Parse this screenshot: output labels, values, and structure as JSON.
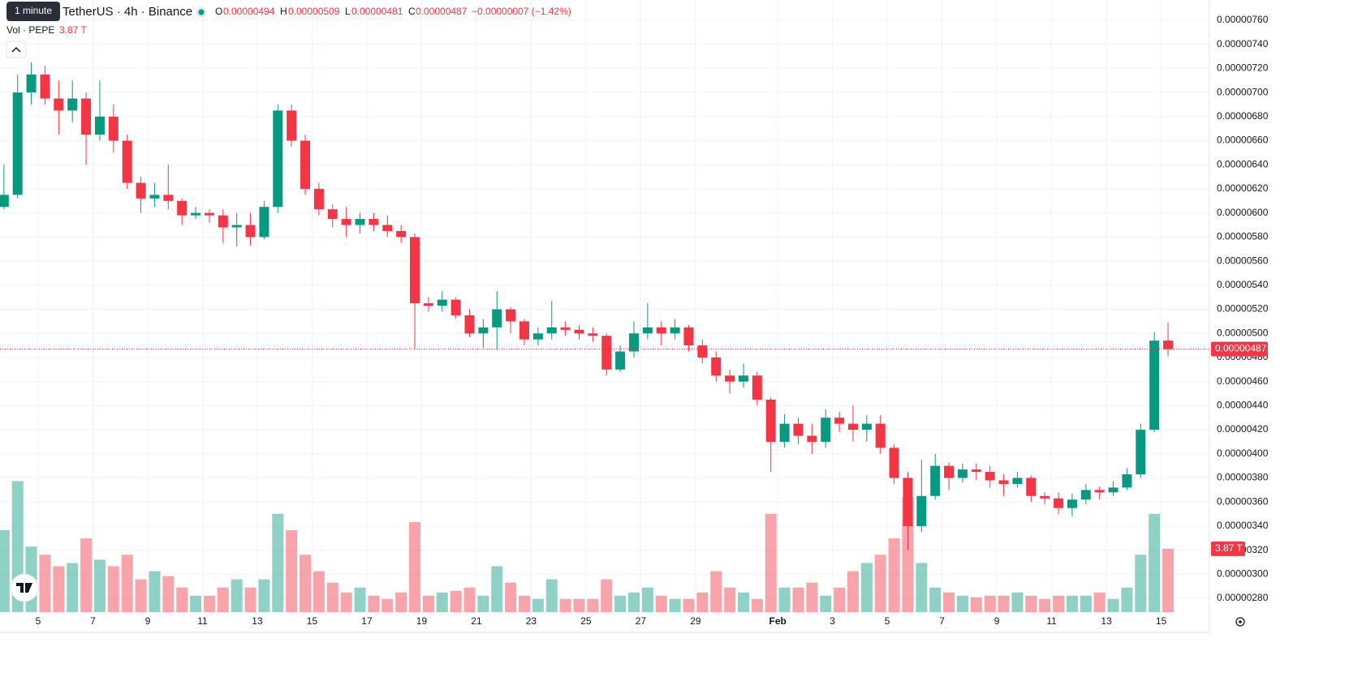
{
  "header": {
    "tooltip": "1 minute",
    "title": "TetherUS · 4h · Binance",
    "o_label": "O",
    "o_value": "0.00000494",
    "h_label": "H",
    "h_value": "0.00000509",
    "l_label": "L",
    "l_value": "0.00000481",
    "c_label": "C",
    "c_value": "0.00000487",
    "change": "−0.00000007 (−1.42%)",
    "vol_label": "Vol · PEPE",
    "vol_value": "3.87 T",
    "price_tag": "0.00000487",
    "vol_tag": "3.87 T"
  },
  "chart_data": {
    "type": "candlestick",
    "up_color": "#089981",
    "down_color": "#f23645",
    "grid": true,
    "xlim": [
      3.607,
      47.76
    ],
    "xticks": [
      5,
      7,
      9,
      11,
      13,
      15,
      17,
      19,
      21,
      23,
      25,
      27,
      29,
      {
        "value": 32,
        "label": "Feb"
      },
      {
        "value": 34,
        "label": "3"
      },
      {
        "value": 36,
        "label": "5"
      },
      {
        "value": 38,
        "label": "7"
      },
      {
        "value": 40,
        "label": "9"
      },
      {
        "value": 42,
        "label": "11"
      },
      {
        "value": 44,
        "label": "13"
      },
      {
        "value": 46,
        "label": "15"
      }
    ],
    "ylim": [
      2.686e-06,
      7.768e-06
    ],
    "yticks": [
      {
        "value": 2.8e-06,
        "label": "0.00000280"
      },
      {
        "value": 3e-06,
        "label": "0.00000300"
      },
      {
        "value": 3.2e-06,
        "label": "0.00000320"
      },
      {
        "value": 3.4e-06,
        "label": "0.00000340"
      },
      {
        "value": 3.6e-06,
        "label": "0.00000360"
      },
      {
        "value": 3.8e-06,
        "label": "0.00000380"
      },
      {
        "value": 4e-06,
        "label": "0.00000400"
      },
      {
        "value": 4.2e-06,
        "label": "0.00000420"
      },
      {
        "value": 4.4e-06,
        "label": "0.00000440"
      },
      {
        "value": 4.6e-06,
        "label": "0.00000460"
      },
      {
        "value": 4.8e-06,
        "label": "0.00000480"
      },
      {
        "value": 5e-06,
        "label": "0.00000500"
      },
      {
        "value": 5.2e-06,
        "label": "0.00000520"
      },
      {
        "value": 5.4e-06,
        "label": "0.00000540"
      },
      {
        "value": 5.6e-06,
        "label": "0.00000560"
      },
      {
        "value": 5.8e-06,
        "label": "0.00000580"
      },
      {
        "value": 6e-06,
        "label": "0.00000600"
      },
      {
        "value": 6.2e-06,
        "label": "0.00000620"
      },
      {
        "value": 6.4e-06,
        "label": "0.00000640"
      },
      {
        "value": 6.6e-06,
        "label": "0.00000660"
      },
      {
        "value": 6.8e-06,
        "label": "0.00000680"
      },
      {
        "value": 7e-06,
        "label": "0.00000700"
      },
      {
        "value": 7.2e-06,
        "label": "0.00000720"
      },
      {
        "value": 7.4e-06,
        "label": "0.00000740"
      },
      {
        "value": 7.6e-06,
        "label": "0.00000760"
      }
    ],
    "last_price": 4.87e-06,
    "x": [
      3.75,
      4.25,
      4.75,
      5.25,
      5.75,
      6.25,
      6.75,
      7.25,
      7.75,
      8.25,
      8.75,
      9.25,
      9.75,
      10.25,
      10.75,
      11.25,
      11.75,
      12.25,
      12.75,
      13.25,
      13.75,
      14.25,
      14.75,
      15.25,
      15.75,
      16.25,
      16.75,
      17.25,
      17.75,
      18.25,
      18.75,
      19.25,
      19.75,
      20.25,
      20.75,
      21.25,
      21.75,
      22.25,
      22.75,
      23.25,
      23.75,
      24.25,
      24.75,
      25.25,
      25.75,
      26.25,
      26.75,
      27.25,
      27.75,
      28.25,
      28.75,
      29.25,
      29.75,
      30.25,
      30.75,
      31.25,
      31.75,
      32.25,
      32.75,
      33.25,
      33.75,
      34.25,
      34.75,
      35.25,
      35.75,
      36.25,
      36.75,
      37.25,
      37.75,
      38.25,
      38.75,
      39.25,
      39.75,
      40.25,
      40.75,
      41.25,
      41.75,
      42.25,
      42.75,
      43.25,
      43.75,
      44.25,
      44.75,
      45.25,
      45.75,
      46.25
    ],
    "open": [
      6.05e-06,
      6.15e-06,
      7e-06,
      7.15e-06,
      6.95e-06,
      6.85e-06,
      6.95e-06,
      6.65e-06,
      6.8e-06,
      6.6e-06,
      6.25e-06,
      6.12e-06,
      6.15e-06,
      6.1e-06,
      5.98e-06,
      6e-06,
      5.98e-06,
      5.88e-06,
      5.9e-06,
      5.8e-06,
      6.05e-06,
      6.85e-06,
      6.6e-06,
      6.2e-06,
      6.03e-06,
      5.95e-06,
      5.9e-06,
      5.95e-06,
      5.9e-06,
      5.85e-06,
      5.8e-06,
      5.25e-06,
      5.23e-06,
      5.28e-06,
      5.15e-06,
      5e-06,
      5.05e-06,
      5.2e-06,
      5.1e-06,
      4.95e-06,
      5e-06,
      5.05e-06,
      5.03e-06,
      5e-06,
      4.98e-06,
      4.7e-06,
      4.85e-06,
      5e-06,
      5.05e-06,
      5e-06,
      5.05e-06,
      4.9e-06,
      4.8e-06,
      4.65e-06,
      4.6e-06,
      4.65e-06,
      4.45e-06,
      4.1e-06,
      4.25e-06,
      4.15e-06,
      4.1e-06,
      4.3e-06,
      4.25e-06,
      4.2e-06,
      4.25e-06,
      4.05e-06,
      3.8e-06,
      3.4e-06,
      3.65e-06,
      3.9e-06,
      3.8e-06,
      3.87e-06,
      3.85e-06,
      3.78e-06,
      3.75e-06,
      3.8e-06,
      3.65e-06,
      3.63e-06,
      3.55e-06,
      3.62e-06,
      3.7e-06,
      3.68e-06,
      3.72e-06,
      3.83e-06,
      4.2e-06,
      4.94e-06
    ],
    "high": [
      6.4e-06,
      7.15e-06,
      7.25e-06,
      7.22e-06,
      7.1e-06,
      7.1e-06,
      7e-06,
      7.1e-06,
      6.9e-06,
      6.65e-06,
      6.3e-06,
      6.25e-06,
      6.4e-06,
      6.12e-06,
      6.05e-06,
      6.03e-06,
      6.03e-06,
      6e-06,
      6e-06,
      6.1e-06,
      6.9e-06,
      6.9e-06,
      6.65e-06,
      6.25e-06,
      6.07e-06,
      6.05e-06,
      6e-06,
      6e-06,
      5.98e-06,
      5.9e-06,
      5.83e-06,
      5.3e-06,
      5.35e-06,
      5.3e-06,
      5.2e-06,
      5.12e-06,
      5.35e-06,
      5.22e-06,
      5.12e-06,
      5.05e-06,
      5.27e-06,
      5.1e-06,
      5.07e-06,
      5.05e-06,
      5e-06,
      4.9e-06,
      5.1e-06,
      5.25e-06,
      5.1e-06,
      5.12e-06,
      5.07e-06,
      4.95e-06,
      4.85e-06,
      4.7e-06,
      4.75e-06,
      4.68e-06,
      4.47e-06,
      4.33e-06,
      4.3e-06,
      4.25e-06,
      4.37e-06,
      4.35e-06,
      4.4e-06,
      4.32e-06,
      4.32e-06,
      4.08e-06,
      3.85e-06,
      3.95e-06,
      4e-06,
      3.93e-06,
      3.92e-06,
      3.92e-06,
      3.9e-06,
      3.83e-06,
      3.85e-06,
      3.82e-06,
      3.68e-06,
      3.68e-06,
      3.67e-06,
      3.75e-06,
      3.73e-06,
      3.77e-06,
      3.88e-06,
      4.25e-06,
      5.01e-06,
      5.09e-06
    ],
    "low": [
      6.03e-06,
      6.12e-06,
      6.9e-06,
      6.9e-06,
      6.65e-06,
      6.75e-06,
      6.4e-06,
      6.6e-06,
      6.5e-06,
      6.2e-06,
      6e-06,
      6.05e-06,
      6.03e-06,
      5.9e-06,
      5.95e-06,
      5.92e-06,
      5.75e-06,
      5.72e-06,
      5.73e-06,
      5.78e-06,
      6e-06,
      6.55e-06,
      6.15e-06,
      5.98e-06,
      5.88e-06,
      5.8e-06,
      5.83e-06,
      5.85e-06,
      5.8e-06,
      5.75e-06,
      4.87e-06,
      5.18e-06,
      5.18e-06,
      5.12e-06,
      4.97e-06,
      4.88e-06,
      4.86e-06,
      5e-06,
      4.9e-06,
      4.9e-06,
      4.95e-06,
      4.98e-06,
      4.95e-06,
      4.93e-06,
      4.65e-06,
      4.68e-06,
      4.8e-06,
      4.95e-06,
      4.9e-06,
      4.95e-06,
      4.85e-06,
      4.75e-06,
      4.6e-06,
      4.5e-06,
      4.55e-06,
      4.4e-06,
      3.85e-06,
      4.05e-06,
      4.08e-06,
      4e-06,
      4.05e-06,
      4.18e-06,
      4.1e-06,
      4.1e-06,
      4e-06,
      3.75e-06,
      3.2e-06,
      3.35e-06,
      3.62e-06,
      3.7e-06,
      3.76e-06,
      3.78e-06,
      3.72e-06,
      3.65e-06,
      3.72e-06,
      3.6e-06,
      3.58e-06,
      3.5e-06,
      3.48e-06,
      3.58e-06,
      3.62e-06,
      3.65e-06,
      3.7e-06,
      3.8e-06,
      4.18e-06,
      4.81e-06
    ],
    "close": [
      6.15e-06,
      7e-06,
      7.15e-06,
      6.95e-06,
      6.85e-06,
      6.95e-06,
      6.65e-06,
      6.8e-06,
      6.6e-06,
      6.25e-06,
      6.12e-06,
      6.15e-06,
      6.1e-06,
      5.98e-06,
      6e-06,
      5.98e-06,
      5.88e-06,
      5.9e-06,
      5.8e-06,
      6.05e-06,
      6.85e-06,
      6.6e-06,
      6.2e-06,
      6.03e-06,
      5.95e-06,
      5.9e-06,
      5.95e-06,
      5.9e-06,
      5.85e-06,
      5.8e-06,
      5.25e-06,
      5.23e-06,
      5.28e-06,
      5.15e-06,
      5e-06,
      5.05e-06,
      5.2e-06,
      5.1e-06,
      4.95e-06,
      5e-06,
      5.05e-06,
      5.03e-06,
      5e-06,
      4.98e-06,
      4.7e-06,
      4.85e-06,
      5e-06,
      5.05e-06,
      5e-06,
      5.05e-06,
      4.9e-06,
      4.8e-06,
      4.65e-06,
      4.6e-06,
      4.65e-06,
      4.45e-06,
      4.1e-06,
      4.25e-06,
      4.15e-06,
      4.1e-06,
      4.3e-06,
      4.25e-06,
      4.2e-06,
      4.25e-06,
      4.05e-06,
      3.8e-06,
      3.4e-06,
      3.65e-06,
      3.9e-06,
      3.8e-06,
      3.87e-06,
      3.85e-06,
      3.78e-06,
      3.75e-06,
      3.8e-06,
      3.65e-06,
      3.63e-06,
      3.55e-06,
      3.62e-06,
      3.7e-06,
      3.68e-06,
      3.72e-06,
      3.83e-06,
      4.2e-06,
      4.94e-06,
      4.87e-06
    ],
    "volume": [
      5.0,
      8.0,
      4.0,
      3.5,
      2.8,
      3.0,
      4.5,
      3.2,
      2.8,
      3.5,
      2.0,
      2.5,
      2.2,
      1.5,
      1.0,
      1.0,
      1.5,
      2.0,
      1.5,
      2.0,
      6.0,
      5.0,
      3.5,
      2.5,
      1.8,
      1.2,
      1.5,
      1.0,
      0.8,
      1.2,
      5.5,
      1.0,
      1.2,
      1.3,
      1.5,
      1.0,
      2.8,
      1.8,
      1.0,
      0.8,
      2.0,
      0.8,
      0.8,
      0.8,
      2.0,
      1.0,
      1.2,
      1.5,
      1.0,
      0.8,
      0.8,
      1.2,
      2.5,
      1.5,
      1.2,
      0.8,
      6.0,
      1.5,
      1.5,
      1.8,
      1.0,
      1.5,
      2.5,
      3.0,
      3.5,
      4.5,
      7.0,
      3.0,
      1.5,
      1.2,
      1.0,
      0.9,
      1.0,
      1.0,
      1.2,
      1.0,
      0.8,
      1.0,
      1.0,
      1.0,
      1.2,
      0.8,
      1.5,
      3.5,
      6.0,
      3.87
    ]
  }
}
